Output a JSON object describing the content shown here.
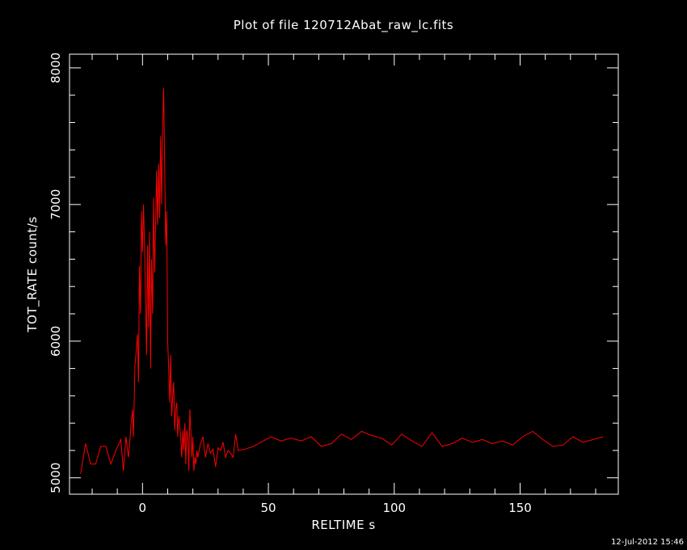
{
  "title": "Plot of file 120712Abat_raw_lc.fits",
  "xlabel": "RELTIME  s",
  "ylabel": "TOT_RATE  count/s",
  "timestamp": "12-Jul-2012 15:46",
  "colors": {
    "background": "#000000",
    "axes": "#ffffff",
    "series": "#ff0000"
  },
  "chart_data": {
    "type": "line",
    "title": "Plot of file 120712Abat_raw_lc.fits",
    "xlabel": "RELTIME  s",
    "ylabel": "TOT_RATE  count/s",
    "xlim": [
      -29,
      189
    ],
    "ylim": [
      4880,
      8100
    ],
    "x_ticks": [
      0,
      50,
      100,
      150
    ],
    "y_ticks": [
      5000,
      6000,
      7000,
      8000
    ],
    "x_tick_labels": [
      "0",
      "50",
      "100",
      "150"
    ],
    "y_tick_labels": [
      "5000",
      "6000",
      "7000",
      "8000"
    ],
    "grid": false,
    "series": [
      {
        "color": "#ff0000",
        "x": [
          -24.6,
          -22.6,
          -20.6,
          -18.6,
          -16.6,
          -14.6,
          -12.6,
          -10.6,
          -8.6,
          -7.6,
          -6.6,
          -5.6,
          -5.0,
          -4.6,
          -4.0,
          -3.6,
          -3.0,
          -2.6,
          -2.0,
          -1.6,
          -1.2,
          -0.8,
          -0.4,
          0.0,
          0.4,
          0.8,
          1.2,
          1.6,
          2.0,
          2.4,
          2.8,
          3.2,
          3.6,
          4.0,
          4.4,
          4.8,
          5.2,
          5.6,
          6.0,
          6.4,
          6.8,
          7.2,
          7.6,
          8.0,
          8.4,
          8.8,
          9.2,
          9.6,
          10.0,
          10.4,
          10.8,
          11.2,
          11.6,
          12.0,
          12.4,
          12.8,
          13.2,
          13.6,
          14.0,
          14.4,
          14.8,
          15.2,
          15.6,
          16.0,
          16.4,
          16.8,
          17.2,
          17.6,
          18.0,
          18.4,
          18.8,
          19.2,
          19.6,
          20.0,
          20.4,
          20.8,
          21.2,
          21.6,
          22.0,
          23.0,
          24.0,
          25.0,
          26.0,
          27.0,
          28.0,
          29.0,
          30.0,
          31.0,
          32.0,
          33.0,
          34.0,
          35.0,
          36.0,
          37.0,
          38.0,
          41.0,
          44.0,
          47.0,
          51.0,
          55.0,
          59.0,
          63.0,
          67.0,
          71.0,
          75.0,
          79.0,
          83.0,
          87.0,
          91.0,
          95.0,
          99.0,
          103.0,
          107.0,
          111.0,
          115.0,
          119.0,
          123.0,
          127.0,
          131.0,
          135.0,
          139.0,
          143.0,
          147.0,
          151.0,
          155.0,
          159.0,
          163.0,
          167.0,
          171.0,
          175.0,
          179.0,
          183.0
        ],
        "values": [
          5030,
          5250,
          5100,
          5100,
          5230,
          5230,
          5100,
          5200,
          5280,
          5050,
          5300,
          5150,
          5280,
          5380,
          5500,
          5300,
          5830,
          5900,
          6050,
          5700,
          6550,
          6200,
          6950,
          6650,
          7000,
          6700,
          6300,
          5900,
          6700,
          6100,
          6800,
          5800,
          6600,
          6200,
          7050,
          6500,
          6850,
          7250,
          6850,
          7300,
          6900,
          7500,
          7000,
          7550,
          7850,
          7300,
          6700,
          6950,
          6000,
          5800,
          5550,
          5900,
          5450,
          5600,
          5700,
          5350,
          5500,
          5550,
          5300,
          5450,
          5380,
          5280,
          5150,
          5350,
          5200,
          5400,
          5100,
          5350,
          5300,
          5050,
          5500,
          5350,
          5150,
          5300,
          5050,
          5150,
          5100,
          5200,
          5150,
          5250,
          5300,
          5150,
          5250,
          5180,
          5210,
          5080,
          5220,
          5200,
          5260,
          5150,
          5200,
          5180,
          5150,
          5320,
          5200,
          5210,
          5230,
          5260,
          5300,
          5270,
          5290,
          5270,
          5300,
          5230,
          5250,
          5320,
          5280,
          5340,
          5310,
          5290,
          5240,
          5320,
          5270,
          5230,
          5330,
          5230,
          5250,
          5290,
          5260,
          5280,
          5250,
          5270,
          5240,
          5300,
          5340,
          5280,
          5230,
          5240,
          5300,
          5260,
          5280,
          5300
        ]
      }
    ]
  }
}
